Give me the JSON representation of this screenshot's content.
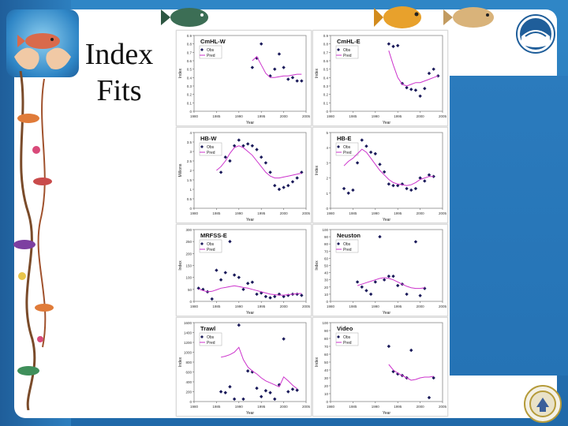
{
  "slide": {
    "title_line1": "Index",
    "title_line2": "Fits",
    "colors": {
      "frame": "#2877b8",
      "obs": "#1a1a5a",
      "pred": "#cc33cc"
    },
    "icons": [
      "hands-fish-logo-icon",
      "noaa-logo-icon",
      "doc-seal-icon",
      "fish-decoration-icon"
    ]
  },
  "chart_data": [
    {
      "type": "line",
      "title": "CmHL-W",
      "xlabel": "Year",
      "ylabel": "Index",
      "xlim": [
        1980,
        2005
      ],
      "ylim": [
        0,
        0.9
      ],
      "xticks": [
        "1980",
        "1985",
        "1990",
        "1995",
        "2000",
        "2005"
      ],
      "yticks": [
        "0",
        "0.1",
        "0.2",
        "0.3",
        "0.4",
        "0.5",
        "0.6",
        "0.7",
        "0.8",
        "0.9"
      ],
      "legend": [
        "Obs",
        "Pred"
      ],
      "series": [
        {
          "name": "Obs",
          "kind": "scatter",
          "x": [
            1993,
            1994,
            1995,
            1997,
            1998,
            1999,
            2000,
            2001,
            2002,
            2003,
            2004
          ],
          "y": [
            0.52,
            0.63,
            0.8,
            0.42,
            0.5,
            0.68,
            0.52,
            0.38,
            0.4,
            0.36,
            0.36
          ]
        },
        {
          "name": "Pred",
          "kind": "line",
          "x": [
            1993,
            1994,
            1995,
            1996,
            1997,
            1998,
            1999,
            2000,
            2001,
            2002,
            2003,
            2004
          ],
          "y": [
            0.6,
            0.65,
            0.55,
            0.45,
            0.4,
            0.4,
            0.41,
            0.42,
            0.42,
            0.43,
            0.44,
            0.44
          ]
        }
      ]
    },
    {
      "type": "line",
      "title": "CmHL-E",
      "xlabel": "Year",
      "ylabel": "Index",
      "xlim": [
        1980,
        2005
      ],
      "ylim": [
        0,
        0.9
      ],
      "xticks": [
        "1980",
        "1985",
        "1990",
        "1995",
        "2000",
        "2005"
      ],
      "yticks": [
        "0",
        "0.1",
        "0.2",
        "0.3",
        "0.4",
        "0.5",
        "0.6",
        "0.7",
        "0.8",
        "0.9"
      ],
      "legend": [
        "Obs",
        "Pred"
      ],
      "series": [
        {
          "name": "Obs",
          "kind": "scatter",
          "x": [
            1993,
            1994,
            1995,
            1996,
            1997,
            1998,
            1999,
            2000,
            2001,
            2002,
            2003,
            2004
          ],
          "y": [
            0.8,
            0.77,
            0.78,
            0.33,
            0.28,
            0.26,
            0.25,
            0.18,
            0.27,
            0.45,
            0.5,
            0.42
          ]
        },
        {
          "name": "Pred",
          "kind": "line",
          "x": [
            1993,
            1994,
            1995,
            1996,
            1997,
            1998,
            1999,
            2000,
            2001,
            2002,
            2003,
            2004
          ],
          "y": [
            0.72,
            0.55,
            0.4,
            0.32,
            0.3,
            0.32,
            0.34,
            0.34,
            0.36,
            0.38,
            0.4,
            0.42
          ]
        }
      ]
    },
    {
      "type": "line",
      "title": "HB-W",
      "xlabel": "Year",
      "ylabel": "Millions",
      "xlim": [
        1980,
        2005
      ],
      "ylim": [
        0,
        4
      ],
      "xticks": [
        "1980",
        "1985",
        "1990",
        "1995",
        "2000",
        "2005"
      ],
      "yticks": [
        "0",
        "0.5",
        "1",
        "1.5",
        "2",
        "2.5",
        "3",
        "3.5",
        "4"
      ],
      "legend": [
        "Obs",
        "Pred"
      ],
      "series": [
        {
          "name": "Obs",
          "kind": "scatter",
          "x": [
            1986,
            1987,
            1988,
            1989,
            1990,
            1991,
            1992,
            1993,
            1994,
            1995,
            1996,
            1997,
            1998,
            1999,
            2000,
            2001,
            2002,
            2003,
            2004
          ],
          "y": [
            1.9,
            2.7,
            2.5,
            3.3,
            3.6,
            3.3,
            3.4,
            3.3,
            3.1,
            2.7,
            2.4,
            1.9,
            1.2,
            1.0,
            1.1,
            1.2,
            1.4,
            1.6,
            1.9
          ]
        },
        {
          "name": "Pred",
          "kind": "line",
          "x": [
            1985,
            1986,
            1987,
            1988,
            1989,
            1990,
            1991,
            1992,
            1993,
            1994,
            1995,
            1996,
            1997,
            1998,
            1999,
            2000,
            2001,
            2002,
            2003,
            2004
          ],
          "y": [
            2.0,
            2.2,
            2.5,
            2.9,
            3.2,
            3.3,
            3.2,
            3.0,
            2.8,
            2.5,
            2.2,
            1.9,
            1.7,
            1.6,
            1.6,
            1.65,
            1.7,
            1.75,
            1.8,
            1.85
          ]
        }
      ]
    },
    {
      "type": "line",
      "title": "HB-E",
      "xlabel": "Year",
      "ylabel": "Index",
      "xlim": [
        1980,
        2005
      ],
      "ylim": [
        0,
        5
      ],
      "xticks": [
        "1980",
        "1985",
        "1990",
        "1995",
        "2000",
        "2005"
      ],
      "yticks": [
        "0",
        "1",
        "2",
        "3",
        "4",
        "5"
      ],
      "legend": [
        "Obs",
        "Pred"
      ],
      "series": [
        {
          "name": "Obs",
          "kind": "scatter",
          "x": [
            1983,
            1984,
            1985,
            1986,
            1987,
            1988,
            1989,
            1990,
            1991,
            1992,
            1993,
            1994,
            1995,
            1996,
            1997,
            1998,
            1999,
            2000,
            2001,
            2002,
            2003
          ],
          "y": [
            1.3,
            1.0,
            1.2,
            3.0,
            4.5,
            4.1,
            3.7,
            3.6,
            2.9,
            2.4,
            1.6,
            1.5,
            1.5,
            1.6,
            1.3,
            1.2,
            1.3,
            2.0,
            1.8,
            2.2,
            2.1
          ]
        },
        {
          "name": "Pred",
          "kind": "line",
          "x": [
            1983,
            1984,
            1985,
            1986,
            1987,
            1988,
            1989,
            1990,
            1991,
            1992,
            1993,
            1994,
            1995,
            1996,
            1997,
            1998,
            1999,
            2000,
            2001,
            2002,
            2003
          ],
          "y": [
            2.8,
            3.1,
            3.3,
            3.6,
            3.9,
            3.7,
            3.3,
            2.9,
            2.5,
            2.2,
            1.9,
            1.7,
            1.6,
            1.55,
            1.5,
            1.55,
            1.7,
            1.9,
            2.0,
            2.1,
            2.1
          ]
        }
      ]
    },
    {
      "type": "line",
      "title": "MRFSS-E",
      "xlabel": "Year",
      "ylabel": "Index",
      "xlim": [
        1980,
        2005
      ],
      "ylim": [
        0,
        300
      ],
      "xticks": [
        "1980",
        "1985",
        "1990",
        "1995",
        "2000",
        "2005"
      ],
      "yticks": [
        "0",
        "50",
        "100",
        "150",
        "200",
        "250",
        "300"
      ],
      "legend": [
        "Obs",
        "Pred"
      ],
      "series": [
        {
          "name": "Obs",
          "kind": "scatter",
          "x": [
            1981,
            1982,
            1983,
            1984,
            1985,
            1986,
            1987,
            1988,
            1989,
            1990,
            1991,
            1992,
            1993,
            1994,
            1995,
            1996,
            1997,
            1998,
            1999,
            2000,
            2001,
            2002,
            2003,
            2004
          ],
          "y": [
            55,
            50,
            40,
            10,
            130,
            90,
            120,
            250,
            110,
            100,
            50,
            75,
            80,
            30,
            35,
            20,
            15,
            20,
            30,
            20,
            25,
            30,
            30,
            25
          ]
        },
        {
          "name": "Pred",
          "kind": "line",
          "x": [
            1981,
            1982,
            1983,
            1984,
            1985,
            1986,
            1987,
            1988,
            1989,
            1990,
            1991,
            1992,
            1993,
            1994,
            1995,
            1996,
            1997,
            1998,
            1999,
            2000,
            2001,
            2002,
            2003,
            2004
          ],
          "y": [
            52,
            45,
            40,
            42,
            48,
            55,
            58,
            62,
            65,
            62,
            58,
            55,
            50,
            45,
            40,
            35,
            30,
            28,
            26,
            26,
            28,
            30,
            32,
            33
          ]
        }
      ]
    },
    {
      "type": "line",
      "title": "Neuston",
      "xlabel": "Year",
      "ylabel": "Index",
      "xlim": [
        1980,
        2005
      ],
      "ylim": [
        0,
        100
      ],
      "xticks": [
        "1980",
        "1985",
        "1990",
        "1995",
        "2000",
        "2005"
      ],
      "yticks": [
        "0",
        "10",
        "20",
        "30",
        "40",
        "50",
        "60",
        "70",
        "80",
        "90",
        "100"
      ],
      "legend": [
        "Obs",
        "Pred"
      ],
      "series": [
        {
          "name": "Obs",
          "kind": "scatter",
          "x": [
            1986,
            1987,
            1988,
            1989,
            1990,
            1991,
            1992,
            1993,
            1994,
            1995,
            1996,
            1997,
            1999,
            2000,
            2001
          ],
          "y": [
            27,
            20,
            15,
            10,
            27,
            90,
            30,
            35,
            35,
            22,
            24,
            10,
            83,
            8,
            18
          ]
        },
        {
          "name": "Pred",
          "kind": "line",
          "x": [
            1986,
            1987,
            1988,
            1989,
            1990,
            1991,
            1992,
            1993,
            1994,
            1995,
            1996,
            1997,
            1998,
            1999,
            2000,
            2001
          ],
          "y": [
            22,
            24,
            26,
            28,
            30,
            32,
            33,
            32,
            30,
            27,
            24,
            21,
            19,
            18,
            18,
            19
          ]
        }
      ]
    },
    {
      "type": "line",
      "title": "Trawl",
      "xlabel": "Year",
      "ylabel": "Index",
      "xlim": [
        1980,
        2005
      ],
      "ylim": [
        0,
        1600
      ],
      "xticks": [
        "1980",
        "1985",
        "1990",
        "1995",
        "2000",
        "2005"
      ],
      "yticks": [
        "0",
        "200",
        "400",
        "600",
        "800",
        "1000",
        "1200",
        "1400",
        "1600"
      ],
      "legend": [
        "Obs",
        "Pred"
      ],
      "series": [
        {
          "name": "Obs",
          "kind": "scatter",
          "x": [
            1986,
            1987,
            1988,
            1989,
            1990,
            1991,
            1992,
            1993,
            1994,
            1995,
            1996,
            1997,
            1998,
            1999,
            2000,
            2001,
            2002,
            2003
          ],
          "y": [
            200,
            180,
            300,
            50,
            1550,
            50,
            620,
            600,
            270,
            100,
            220,
            180,
            50,
            340,
            1270,
            200,
            250,
            230
          ]
        },
        {
          "name": "Pred",
          "kind": "line",
          "x": [
            1986,
            1987,
            1988,
            1989,
            1990,
            1991,
            1992,
            1993,
            1994,
            1995,
            1996,
            1997,
            1998,
            1999,
            2000,
            2001,
            2002,
            2003
          ],
          "y": [
            900,
            920,
            950,
            1000,
            1100,
            850,
            700,
            620,
            560,
            480,
            420,
            380,
            340,
            300,
            500,
            420,
            330,
            260
          ]
        }
      ]
    },
    {
      "type": "line",
      "title": "Video",
      "xlabel": "Year",
      "ylabel": "Index",
      "xlim": [
        1980,
        2005
      ],
      "ylim": [
        0,
        100
      ],
      "xticks": [
        "1980",
        "1985",
        "1990",
        "1995",
        "2000",
        "2005"
      ],
      "yticks": [
        "0",
        "10",
        "20",
        "30",
        "40",
        "50",
        "60",
        "70",
        "80",
        "90",
        "100"
      ],
      "legend": [
        "Obs",
        "Pred"
      ],
      "series": [
        {
          "name": "Obs",
          "kind": "scatter",
          "x": [
            1993,
            1994,
            1995,
            1996,
            1997,
            1998,
            2002,
            2003
          ],
          "y": [
            70,
            38,
            35,
            33,
            30,
            65,
            5,
            30
          ]
        },
        {
          "name": "Pred",
          "kind": "line",
          "x": [
            1993,
            1994,
            1995,
            1996,
            1997,
            1998,
            1999,
            2000,
            2001,
            2002,
            2003
          ],
          "y": [
            47,
            40,
            36,
            33,
            30,
            27,
            28,
            30,
            31,
            31,
            32
          ]
        }
      ]
    }
  ]
}
